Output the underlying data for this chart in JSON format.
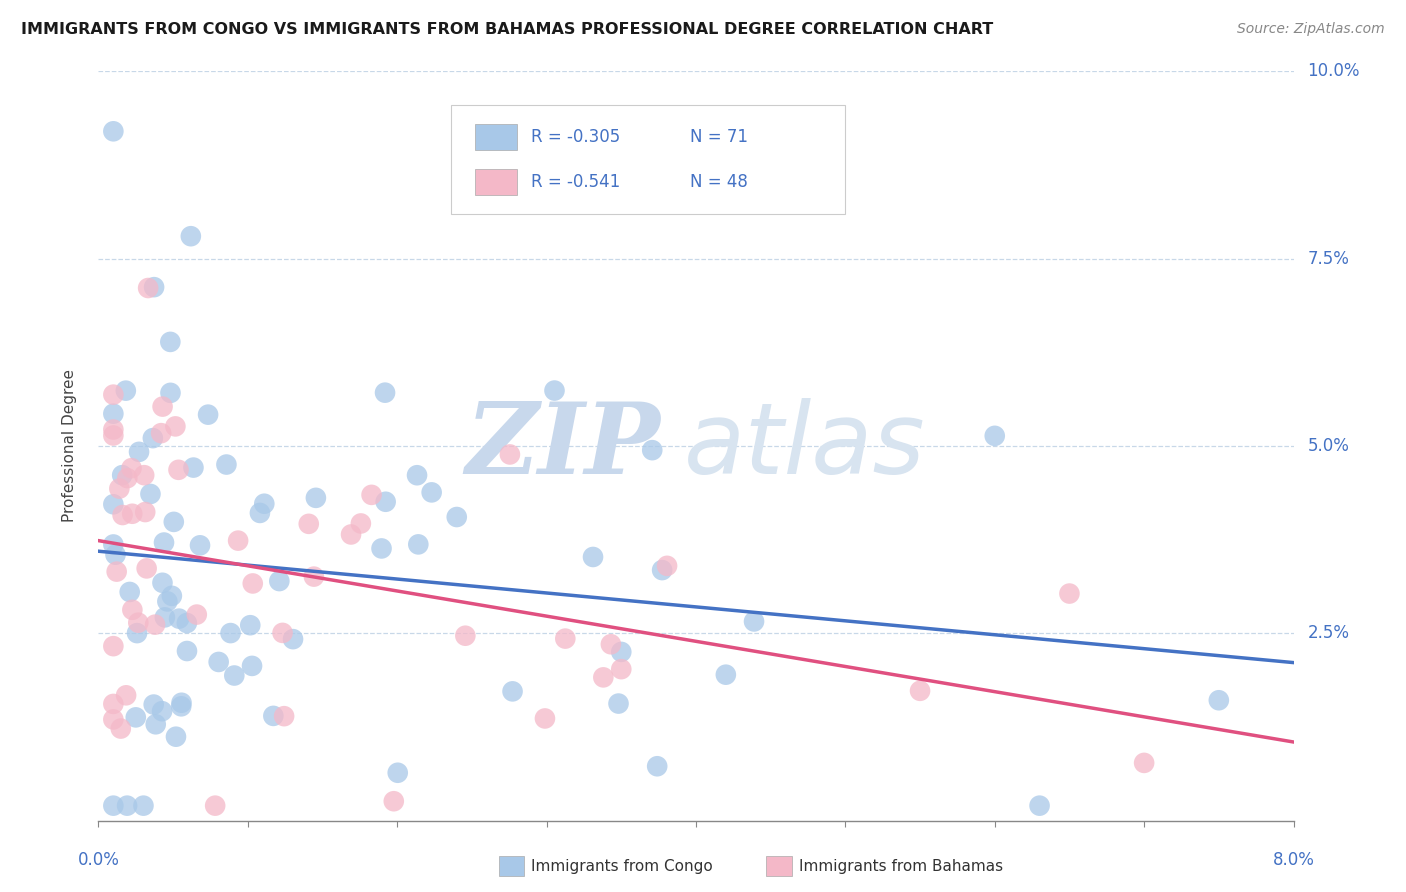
{
  "title": "IMMIGRANTS FROM CONGO VS IMMIGRANTS FROM BAHAMAS PROFESSIONAL DEGREE CORRELATION CHART",
  "source": "Source: ZipAtlas.com",
  "ylabel": "Professional Degree",
  "color_congo": "#a8c8e8",
  "color_bahamas": "#f4b8c8",
  "trend_color_congo": "#4472c4",
  "trend_color_bahamas": "#e05080",
  "background": "#ffffff",
  "xlim": [
    0.0,
    0.08
  ],
  "ylim": [
    0.0,
    0.1
  ],
  "ytick_labels": [
    "10.0%",
    "7.5%",
    "5.0%",
    "2.5%"
  ],
  "ytick_vals": [
    0.1,
    0.075,
    0.05,
    0.025
  ],
  "legend_r1": "R = -0.305",
  "legend_n1": "N = 71",
  "legend_r2": "R = -0.541",
  "legend_n2": "N = 48"
}
